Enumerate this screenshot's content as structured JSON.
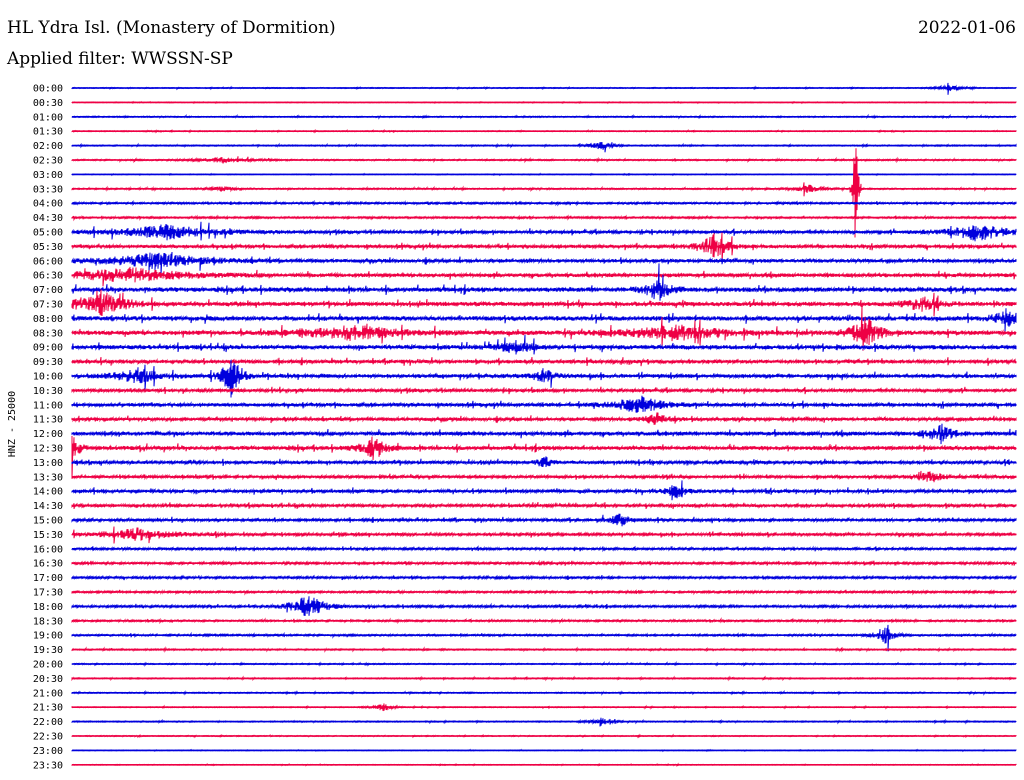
{
  "header": {
    "station": "HL Ydra Isl. (Monastery of Dormition)",
    "date": "2022-01-06",
    "filter": "Applied filter: WWSSN-SP"
  },
  "chart_data": {
    "type": "helicorder",
    "ylabel": "HNZ - 25000",
    "colors": [
      "#0000dd",
      "#ee0044"
    ],
    "rows": [
      "00:00",
      "00:30",
      "01:00",
      "01:30",
      "02:00",
      "02:30",
      "03:00",
      "03:30",
      "04:00",
      "04:30",
      "05:00",
      "05:30",
      "06:00",
      "06:30",
      "07:00",
      "07:30",
      "08:00",
      "08:30",
      "09:00",
      "09:30",
      "10:00",
      "10:30",
      "11:00",
      "11:30",
      "12:00",
      "12:30",
      "13:00",
      "13:30",
      "14:00",
      "14:30",
      "15:00",
      "15:30",
      "16:00",
      "16:30",
      "17:00",
      "17:30",
      "18:00",
      "18:30",
      "19:00",
      "19:30",
      "20:00",
      "20:30",
      "21:00",
      "21:30",
      "22:00",
      "22:30",
      "23:00",
      "23:30"
    ],
    "noise": [
      0.4,
      0.3,
      0.5,
      0.4,
      0.5,
      0.6,
      0.3,
      0.6,
      0.8,
      0.8,
      1.5,
      1.6,
      1.7,
      1.8,
      2.2,
      2.0,
      2.2,
      2.2,
      2.1,
      1.8,
      1.8,
      1.5,
      1.7,
      1.6,
      1.9,
      1.9,
      1.5,
      1.3,
      1.6,
      1.4,
      1.3,
      1.3,
      1.0,
      1.0,
      1.0,
      0.9,
      1.0,
      0.8,
      0.8,
      0.6,
      0.5,
      0.5,
      0.5,
      0.4,
      0.5,
      0.4,
      0.3,
      0.3
    ],
    "events": [
      {
        "row": 0,
        "t": 0.93,
        "amp": 3,
        "w": 0.01
      },
      {
        "row": 4,
        "t": 0.56,
        "amp": 5,
        "w": 0.008
      },
      {
        "row": 5,
        "t": 0.16,
        "amp": 3,
        "w": 0.02
      },
      {
        "row": 7,
        "t": 0.16,
        "amp": 3,
        "w": 0.01
      },
      {
        "row": 7,
        "t": 0.78,
        "amp": 4,
        "w": 0.012
      },
      {
        "row": 7,
        "t": 0.83,
        "amp": 86,
        "w": 0.002
      },
      {
        "row": 10,
        "t": 0.1,
        "amp": 7,
        "w": 0.04
      },
      {
        "row": 10,
        "t": 0.96,
        "amp": 9,
        "w": 0.025
      },
      {
        "row": 11,
        "t": 0.68,
        "amp": 12,
        "w": 0.012
      },
      {
        "row": 12,
        "t": 0.09,
        "amp": 8,
        "w": 0.04
      },
      {
        "row": 13,
        "t": 0.06,
        "amp": 7,
        "w": 0.05
      },
      {
        "row": 14,
        "t": 0.62,
        "amp": 12,
        "w": 0.01
      },
      {
        "row": 15,
        "t": 0.03,
        "amp": 14,
        "w": 0.02
      },
      {
        "row": 15,
        "t": 0.9,
        "amp": 7,
        "w": 0.015
      },
      {
        "row": 16,
        "t": 0.99,
        "amp": 9,
        "w": 0.01
      },
      {
        "row": 17,
        "t": 0.3,
        "amp": 7,
        "w": 0.04
      },
      {
        "row": 17,
        "t": 0.64,
        "amp": 7,
        "w": 0.04
      },
      {
        "row": 17,
        "t": 0.84,
        "amp": 20,
        "w": 0.01
      },
      {
        "row": 18,
        "t": 0.47,
        "amp": 6,
        "w": 0.015
      },
      {
        "row": 20,
        "t": 0.07,
        "amp": 7,
        "w": 0.02
      },
      {
        "row": 20,
        "t": 0.17,
        "amp": 24,
        "w": 0.008
      },
      {
        "row": 20,
        "t": 0.5,
        "amp": 7,
        "w": 0.01
      },
      {
        "row": 22,
        "t": 0.6,
        "amp": 9,
        "w": 0.02
      },
      {
        "row": 23,
        "t": 0.62,
        "amp": 7,
        "w": 0.01
      },
      {
        "row": 24,
        "t": 0.92,
        "amp": 10,
        "w": 0.01
      },
      {
        "row": 25,
        "t": 0.0,
        "amp": 14,
        "w": 0.006
      },
      {
        "row": 25,
        "t": 0.32,
        "amp": 12,
        "w": 0.01
      },
      {
        "row": 26,
        "t": 0.5,
        "amp": 7,
        "w": 0.005
      },
      {
        "row": 27,
        "t": 0.91,
        "amp": 6,
        "w": 0.01
      },
      {
        "row": 28,
        "t": 0.64,
        "amp": 7,
        "w": 0.008
      },
      {
        "row": 30,
        "t": 0.58,
        "amp": 7,
        "w": 0.008
      },
      {
        "row": 31,
        "t": 0.07,
        "amp": 6,
        "w": 0.03
      },
      {
        "row": 36,
        "t": 0.25,
        "amp": 12,
        "w": 0.015
      },
      {
        "row": 38,
        "t": 0.86,
        "amp": 10,
        "w": 0.008
      },
      {
        "row": 43,
        "t": 0.33,
        "amp": 4,
        "w": 0.008
      },
      {
        "row": 44,
        "t": 0.56,
        "amp": 4,
        "w": 0.008
      }
    ]
  }
}
